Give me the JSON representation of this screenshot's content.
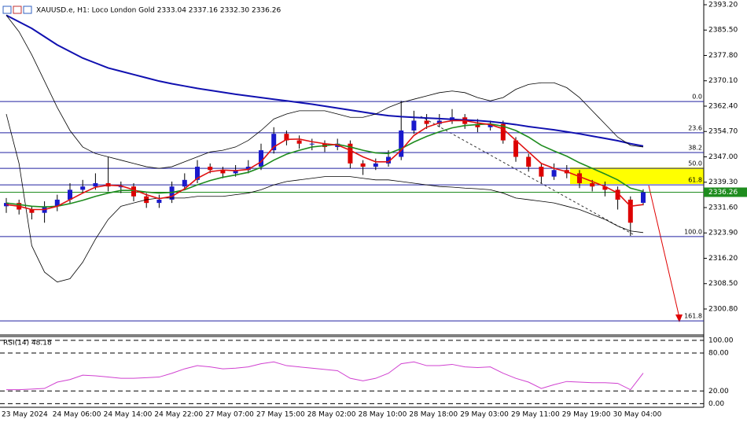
{
  "chart_data": {
    "type": "candlestick",
    "title": "XAUUSD.e, H1:  Loco London Gold  2333.04 2337.16 2332.30 2336.26",
    "categories": [
      "23 May 2024",
      null,
      null,
      null,
      "24 May 06:00",
      null,
      null,
      null,
      "24 May 14:00",
      null,
      null,
      null,
      "24 May 22:00",
      null,
      null,
      null,
      "27 May 07:00",
      null,
      null,
      null,
      "27 May 15:00",
      null,
      null,
      null,
      "28 May 02:00",
      null,
      null,
      null,
      "28 May 10:00",
      null,
      null,
      null,
      "28 May 18:00",
      null,
      null,
      null,
      "29 May 03:00",
      null,
      null,
      null,
      "29 May 11:00",
      null,
      null,
      null,
      "29 May 19:00",
      null,
      null,
      null,
      "30 May 04:00",
      null,
      null
    ],
    "open": [
      2332,
      2333,
      2331,
      2330,
      2332,
      2334,
      2337,
      2338,
      2339,
      2338,
      2338,
      2335,
      2333,
      2334,
      2338,
      2340,
      2344,
      2343,
      2342,
      2343,
      2344,
      2349,
      2354,
      2352,
      2351,
      2351,
      2350,
      2351,
      2345,
      2344,
      2345,
      2347,
      2355,
      2358,
      2357,
      2358,
      2359,
      2357,
      2356,
      2357,
      2352,
      2347,
      2344,
      2341,
      2343,
      2342,
      2339,
      2338,
      2337,
      2334,
      2333.04
    ],
    "high": [
      2334.5,
      2334,
      2332,
      2333.5,
      2335.5,
      2339,
      2340,
      2342,
      2347,
      2339.5,
      2339,
      2336,
      2335.5,
      2339.5,
      2342,
      2346,
      2345,
      2344,
      2344.5,
      2346,
      2351,
      2356,
      2355,
      2353.5,
      2352.5,
      2352,
      2352.5,
      2352,
      2346,
      2346.5,
      2349,
      2364,
      2361,
      2360,
      2360,
      2361.5,
      2360,
      2358.5,
      2358,
      2358,
      2353,
      2348,
      2345,
      2345,
      2344.5,
      2343,
      2340,
      2339.5,
      2338,
      2335,
      2337.16
    ],
    "low": [
      2330,
      2329.5,
      2328,
      2327,
      2330.5,
      2333,
      2336,
      2337,
      2336.5,
      2336,
      2333.5,
      2331.5,
      2331.5,
      2333,
      2337,
      2339,
      2342,
      2340.5,
      2341,
      2342,
      2343,
      2348,
      2350.5,
      2349.5,
      2349,
      2348.5,
      2349,
      2343.5,
      2341.5,
      2343,
      2344,
      2346,
      2354,
      2355.5,
      2356,
      2357,
      2355.5,
      2354.5,
      2355,
      2351,
      2345.5,
      2342.5,
      2339,
      2340,
      2340.5,
      2337.5,
      2336.5,
      2335,
      2331,
      2323,
      2332.3
    ],
    "close": [
      2333,
      2331,
      2330,
      2332,
      2334,
      2337,
      2338,
      2339,
      2338,
      2338,
      2335,
      2333,
      2334,
      2338,
      2340,
      2344,
      2343,
      2342,
      2343,
      2344,
      2349,
      2354,
      2352,
      2351,
      2351,
      2350,
      2351,
      2345,
      2344,
      2345,
      2347,
      2355,
      2358,
      2357,
      2358,
      2359,
      2357,
      2356,
      2357,
      2352,
      2347,
      2344,
      2341,
      2343,
      2342,
      2339,
      2338,
      2337,
      2334,
      2327,
      2336.26
    ],
    "bull_color": "#1a1acc",
    "bear_color": "#dd0000",
    "overlays": [
      {
        "color": "#1010b0",
        "width": 2,
        "values": [
          2390,
          2388,
          2386,
          2383.5,
          2381,
          2379,
          2377,
          2375.5,
          2374,
          2373,
          2372,
          2371,
          2370,
          2369.2,
          2368.5,
          2367.8,
          2367.2,
          2366.6,
          2366,
          2365.5,
          2365,
          2364.5,
          2364,
          2363.5,
          2363,
          2362.4,
          2361.8,
          2361.2,
          2360.6,
          2360,
          2359.5,
          2359.2,
          2359,
          2358.8,
          2358.6,
          2358.4,
          2358.2,
          2358,
          2357.7,
          2357.3,
          2356.8,
          2356.2,
          2355.7,
          2355.2,
          2354.6,
          2354,
          2353.3,
          2352.6,
          2351.9,
          2351,
          2350.3
        ]
      },
      {
        "color": "#000000",
        "width": 0.8,
        "values": [
          2390,
          2385,
          2378,
          2370,
          2362,
          2355,
          2350,
          2348,
          2347,
          2346,
          2345,
          2344,
          2343.5,
          2344,
          2345.5,
          2347,
          2348.5,
          2349,
          2350,
          2352,
          2355,
          2358.5,
          2360,
          2361,
          2361,
          2361,
          2360,
          2359,
          2359,
          2360,
          2362,
          2363.5,
          2364.5,
          2365.5,
          2366.5,
          2367,
          2366.5,
          2365,
          2364,
          2365,
          2367.5,
          2369,
          2369.5,
          2369.5,
          2368,
          2365,
          2361,
          2357,
          2353,
          2350.5,
          2350
        ]
      },
      {
        "color": "#000000",
        "width": 0.8,
        "values": [
          2360,
          2345,
          2320,
          2312,
          2309,
          2310,
          2315,
          2322,
          2328,
          2332,
          2333,
          2334,
          2334.5,
          2334.5,
          2334.5,
          2335,
          2335,
          2335,
          2335.5,
          2336,
          2337,
          2338.5,
          2339.5,
          2340,
          2340.5,
          2341,
          2341,
          2341,
          2340.5,
          2340,
          2340,
          2339.5,
          2339,
          2338.5,
          2338,
          2337.8,
          2337.5,
          2337.3,
          2337,
          2336,
          2334.5,
          2334,
          2333.5,
          2333,
          2332,
          2331,
          2329.5,
          2328,
          2326,
          2324.5,
          2324
        ]
      },
      {
        "color": "#1e8c1e",
        "width": 1.6,
        "values": [
          2333,
          2332.5,
          2332,
          2331.8,
          2332,
          2332.8,
          2333.8,
          2335,
          2336,
          2336.8,
          2336.8,
          2336.3,
          2336,
          2336.2,
          2337,
          2338.5,
          2339.8,
          2340.8,
          2341.5,
          2342.3,
          2343.8,
          2346,
          2347.8,
          2349,
          2350,
          2350.4,
          2350.8,
          2350,
          2349,
          2348.2,
          2348,
          2349.5,
          2351.5,
          2353.2,
          2354.6,
          2355.8,
          2356.5,
          2356.8,
          2357,
          2356.3,
          2355,
          2353,
          2350.5,
          2348.8,
          2347.2,
          2345.2,
          2343.5,
          2341.8,
          2340,
          2337.5,
          2336.5
        ]
      },
      {
        "color": "#e01010",
        "width": 1.6,
        "values": [
          2332.5,
          2332,
          2331,
          2331,
          2332,
          2334,
          2336,
          2337.8,
          2338.4,
          2338.2,
          2337,
          2335.5,
          2334.3,
          2335,
          2337.3,
          2340.5,
          2342.5,
          2343,
          2342.8,
          2343.2,
          2345.5,
          2350,
          2352.3,
          2352.4,
          2351.6,
          2351,
          2350.6,
          2349,
          2347,
          2345.5,
          2345.5,
          2349,
          2353.5,
          2356,
          2357.3,
          2358,
          2358,
          2357.3,
          2356.8,
          2355.5,
          2352,
          2348.5,
          2345,
          2343.5,
          2342.5,
          2341,
          2339.5,
          2338,
          2336,
          2332,
          2332.5
        ]
      }
    ],
    "ylim": [
      2293.16,
      2394.63
    ],
    "yticks": [
      {
        "value": 2393.2,
        "label": "2393.20"
      },
      {
        "value": 2385.5,
        "label": "2385.50"
      },
      {
        "value": 2377.8,
        "label": "2377.80"
      },
      {
        "value": 2370.1,
        "label": "2370.10"
      },
      {
        "value": 2362.4,
        "label": "2362.40"
      },
      {
        "value": 2354.7,
        "label": "2354.70"
      },
      {
        "value": 2347,
        "label": "2347.00"
      },
      {
        "value": 2339.3,
        "label": "2339.30"
      },
      {
        "value": 2331.6,
        "label": "2331.60"
      },
      {
        "value": 2323.9,
        "label": "2323.90"
      },
      {
        "value": 2316.2,
        "label": "2316.20"
      },
      {
        "value": 2308.5,
        "label": "2308.50"
      },
      {
        "value": 2300.8,
        "label": "2300.80"
      }
    ],
    "last_price": 2336.26,
    "fib_levels": [
      {
        "label": "0.0",
        "value": 2363.8
      },
      {
        "label": "23.6",
        "value": 2354.3
      },
      {
        "label": "38.2",
        "value": 2348.3
      },
      {
        "label": "50.0",
        "value": 2343.5
      },
      {
        "label": "61.8",
        "value": 2338.5
      },
      {
        "label": "100.0",
        "value": 2322.8
      },
      {
        "label": "161.8",
        "value": 2297.2
      }
    ],
    "rsi": {
      "title": "RSI(14) 48.18",
      "color": "#d040d0",
      "values": [
        22,
        22,
        23,
        24,
        34,
        38,
        45,
        44,
        42,
        40,
        40,
        41,
        42,
        48,
        55,
        60,
        58,
        55,
        56,
        58,
        63,
        66,
        60,
        58,
        56,
        54,
        52,
        40,
        36,
        40,
        48,
        63,
        66,
        60,
        60,
        62,
        58,
        57,
        58,
        48,
        40,
        34,
        24,
        30,
        35,
        34,
        33,
        33,
        32,
        22,
        48.18
      ],
      "ylim": [
        -2,
        106
      ],
      "yticks": [
        {
          "value": 100,
          "label": "100.00"
        },
        {
          "value": 80,
          "label": "80.00"
        },
        {
          "value": 20,
          "label": "20.00"
        },
        {
          "value": 0,
          "label": "0.00"
        }
      ]
    }
  }
}
